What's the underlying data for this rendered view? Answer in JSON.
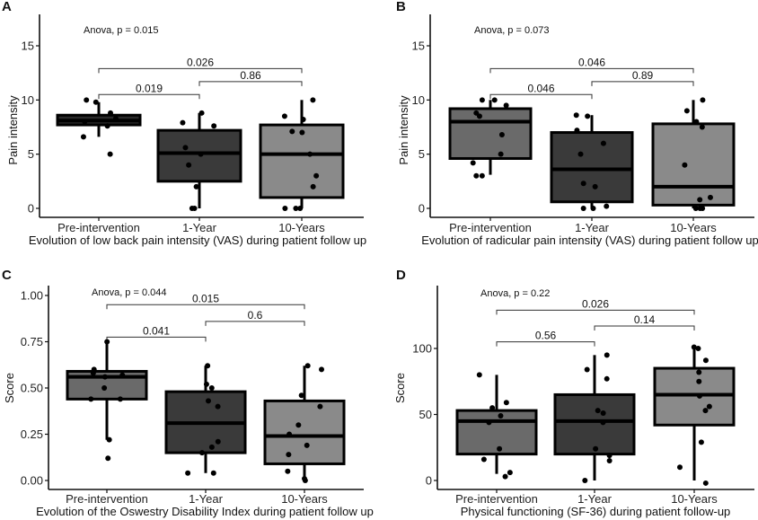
{
  "figure": {
    "colors": {
      "pre_intervention_fill": "#6a6a6a",
      "pre_intervention_fill_A": "#2a2a2a",
      "one_year_fill": "#3a3a3a",
      "ten_years_fill": "#8a8a8a",
      "points": "#000000"
    }
  },
  "chart_data": [
    {
      "id": "A",
      "type": "box",
      "panel_label": "A",
      "title": "",
      "xlabel": "Evolution of low back pain intensity (VAS) during patient follow up",
      "ylabel": "Pain intensity",
      "ylim": [
        0,
        17.5
      ],
      "yticks": [
        0,
        5,
        10,
        15
      ],
      "ytick_labels": [
        "0",
        "5",
        "10",
        "15"
      ],
      "categories": [
        "Pre-intervention",
        "1-Year",
        "10-Years"
      ],
      "anova_label": "Anova, p = 0.015",
      "boxes": [
        {
          "category": "Pre-intervention",
          "q1": 7.7,
          "median": 8.1,
          "q3": 8.6,
          "whisker_low": 6.6,
          "whisker_high": 9.8
        },
        {
          "category": "1-Year",
          "q1": 2.5,
          "median": 5.1,
          "q3": 7.2,
          "whisker_low": 0,
          "whisker_high": 8.8
        },
        {
          "category": "10-Years",
          "q1": 1.0,
          "median": 5.0,
          "q3": 7.7,
          "whisker_low": 0,
          "whisker_high": 10
        }
      ],
      "points": [
        {
          "category": "Pre-intervention",
          "values": [
            7.6,
            6.6,
            9.8,
            8.8,
            10,
            5,
            8,
            8.3
          ]
        },
        {
          "category": "1-Year",
          "values": [
            8.8,
            0,
            0,
            5,
            5.6,
            7.9,
            7.6,
            4,
            2
          ]
        },
        {
          "category": "10-Years",
          "values": [
            0,
            0,
            3,
            0,
            10,
            8.5,
            8.2,
            7.1,
            7,
            2,
            5
          ]
        }
      ],
      "comparisons": [
        {
          "from": "Pre-intervention",
          "to": "1-Year",
          "label": "0.019",
          "level": 10.5
        },
        {
          "from": "1-Year",
          "to": "10-Years",
          "label": "0.86",
          "level": 11.7
        },
        {
          "from": "Pre-intervention",
          "to": "10-Years",
          "label": "0.026",
          "level": 12.9
        }
      ]
    },
    {
      "id": "B",
      "type": "box",
      "panel_label": "B",
      "title": "",
      "xlabel": "Evolution of radicular pain intensity (VAS) during patient follow up",
      "ylabel": "Pain intensity",
      "ylim": [
        0,
        17.5
      ],
      "yticks": [
        0,
        5,
        10,
        15
      ],
      "ytick_labels": [
        "0",
        "5",
        "10",
        "15"
      ],
      "categories": [
        "Pre-intervention",
        "1-Year",
        "10-Years"
      ],
      "anova_label": "Anova, p = 0.073",
      "boxes": [
        {
          "category": "Pre-intervention",
          "q1": 4.6,
          "median": 8.0,
          "q3": 9.2,
          "whisker_low": 3.1,
          "whisker_high": 10
        },
        {
          "category": "1-Year",
          "q1": 0.6,
          "median": 3.6,
          "q3": 7.0,
          "whisker_low": 0,
          "whisker_high": 8.6
        },
        {
          "category": "10-Years",
          "q1": 0.3,
          "median": 2.0,
          "q3": 7.8,
          "whisker_low": 0,
          "whisker_high": 10
        }
      ],
      "points": [
        {
          "category": "Pre-intervention",
          "values": [
            10,
            9.5,
            10,
            8.8,
            8.5,
            6.8,
            5,
            4.2,
            3,
            3
          ]
        },
        {
          "category": "1-Year",
          "values": [
            6,
            0,
            0.2,
            2.3,
            5,
            7.2,
            8.5,
            8.6,
            2,
            0
          ]
        },
        {
          "category": "10-Years",
          "values": [
            0,
            0,
            0,
            1,
            0.8,
            4,
            7.5,
            8,
            9,
            10
          ]
        }
      ],
      "comparisons": [
        {
          "from": "Pre-intervention",
          "to": "1-Year",
          "label": "0.046",
          "level": 10.5
        },
        {
          "from": "1-Year",
          "to": "10-Years",
          "label": "0.89",
          "level": 11.7
        },
        {
          "from": "Pre-intervention",
          "to": "10-Years",
          "label": "0.046",
          "level": 12.9
        }
      ]
    },
    {
      "id": "C",
      "type": "box",
      "panel_label": "C",
      "title": "",
      "xlabel": "Evolution of the Oswestry Disability Index during patient follow up",
      "ylabel": "Score",
      "ylim": [
        -0.05,
        1.05
      ],
      "yticks": [
        0,
        0.25,
        0.5,
        0.75,
        1.0
      ],
      "ytick_labels": [
        "0.00",
        "0.25",
        "0.50",
        "0.75",
        "1.00"
      ],
      "categories": [
        "Pre-intervention",
        "1-Year",
        "10-Years"
      ],
      "anova_label": "Anova, p = 0.044",
      "boxes": [
        {
          "category": "Pre-intervention",
          "q1": 0.44,
          "median": 0.56,
          "q3": 0.59,
          "whisker_low": 0.22,
          "whisker_high": 0.74
        },
        {
          "category": "1-Year",
          "q1": 0.15,
          "median": 0.31,
          "q3": 0.48,
          "whisker_low": 0.04,
          "whisker_high": 0.62
        },
        {
          "category": "10-Years",
          "q1": 0.09,
          "median": 0.24,
          "q3": 0.43,
          "whisker_low": 0.0,
          "whisker_high": 0.62
        }
      ],
      "points": [
        {
          "category": "Pre-intervention",
          "values": [
            0.75,
            0.22,
            0.58,
            0.5,
            0.57,
            0.6,
            0.44,
            0.44,
            0.12,
            0.56
          ]
        },
        {
          "category": "1-Year",
          "values": [
            0.52,
            0.43,
            0.21,
            0.04,
            0.18,
            0.5,
            0.4,
            0.62,
            0.15,
            0.04
          ]
        },
        {
          "category": "10-Years",
          "values": [
            0,
            0.19,
            0.14,
            0.01,
            0.6,
            0.46,
            0.4,
            0.25,
            0.3,
            0.05,
            0.62
          ]
        }
      ],
      "comparisons": [
        {
          "from": "Pre-intervention",
          "to": "1-Year",
          "label": "0.041",
          "level": 0.775
        },
        {
          "from": "1-Year",
          "to": "10-Years",
          "label": "0.6",
          "level": 0.86
        },
        {
          "from": "Pre-intervention",
          "to": "10-Years",
          "label": "0.015",
          "level": 0.95
        }
      ]
    },
    {
      "id": "D",
      "type": "box",
      "panel_label": "D",
      "title": "",
      "xlabel": "Physical functioning (SF-36) during patient follow-up",
      "ylabel": "Score",
      "ylim": [
        -7,
        147
      ],
      "yticks": [
        0,
        50,
        100
      ],
      "ytick_labels": [
        "0",
        "50",
        "100"
      ],
      "categories": [
        "Pre-intervention",
        "1-Year",
        "10-Years"
      ],
      "anova_label": "Anova, p = 0.22",
      "boxes": [
        {
          "category": "Pre-intervention",
          "q1": 20,
          "median": 45,
          "q3": 53,
          "whisker_low": 5,
          "whisker_high": 80
        },
        {
          "category": "1-Year",
          "q1": 20,
          "median": 45,
          "q3": 65,
          "whisker_low": 0,
          "whisker_high": 95
        },
        {
          "category": "10-Years",
          "q1": 42,
          "median": 65,
          "q3": 85,
          "whisker_low": 0,
          "whisker_high": 100
        }
      ],
      "points": [
        {
          "category": "Pre-intervention",
          "values": [
            80,
            55,
            44,
            24,
            6,
            3,
            16,
            49,
            59
          ]
        },
        {
          "category": "1-Year",
          "values": [
            53,
            15,
            51,
            44,
            24,
            95,
            19,
            0,
            84,
            77
          ]
        },
        {
          "category": "10-Years",
          "values": [
            100,
            53,
            75,
            82,
            56,
            29,
            10,
            101,
            91,
            64,
            -2
          ]
        }
      ],
      "comparisons": [
        {
          "from": "Pre-intervention",
          "to": "1-Year",
          "label": "0.56",
          "level": 105
        },
        {
          "from": "1-Year",
          "to": "10-Years",
          "label": "0.14",
          "level": 117
        },
        {
          "from": "Pre-intervention",
          "to": "10-Years",
          "label": "0.026",
          "level": 129
        }
      ]
    }
  ]
}
